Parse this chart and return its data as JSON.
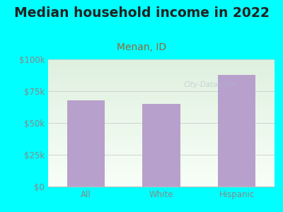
{
  "title": "Median household income in 2022",
  "subtitle": "Menan, ID",
  "categories": [
    "All",
    "White",
    "Hispanic"
  ],
  "values": [
    68000,
    65000,
    88000
  ],
  "bar_color": "#b8a0cc",
  "ylim": [
    0,
    100000
  ],
  "yticks": [
    0,
    25000,
    50000,
    75000,
    100000
  ],
  "ytick_labels": [
    "$0",
    "$25k",
    "$50k",
    "$75k",
    "$100k"
  ],
  "background_outer": "#00ffff",
  "background_inner_top": "#dff0df",
  "background_inner_bottom": "#f8fff8",
  "title_color": "#222222",
  "subtitle_color": "#996633",
  "tick_color": "#888888",
  "watermark": "City-Data.com",
  "title_fontsize": 13.5,
  "subtitle_fontsize": 10,
  "tick_fontsize": 8.5,
  "bar_width": 0.5
}
